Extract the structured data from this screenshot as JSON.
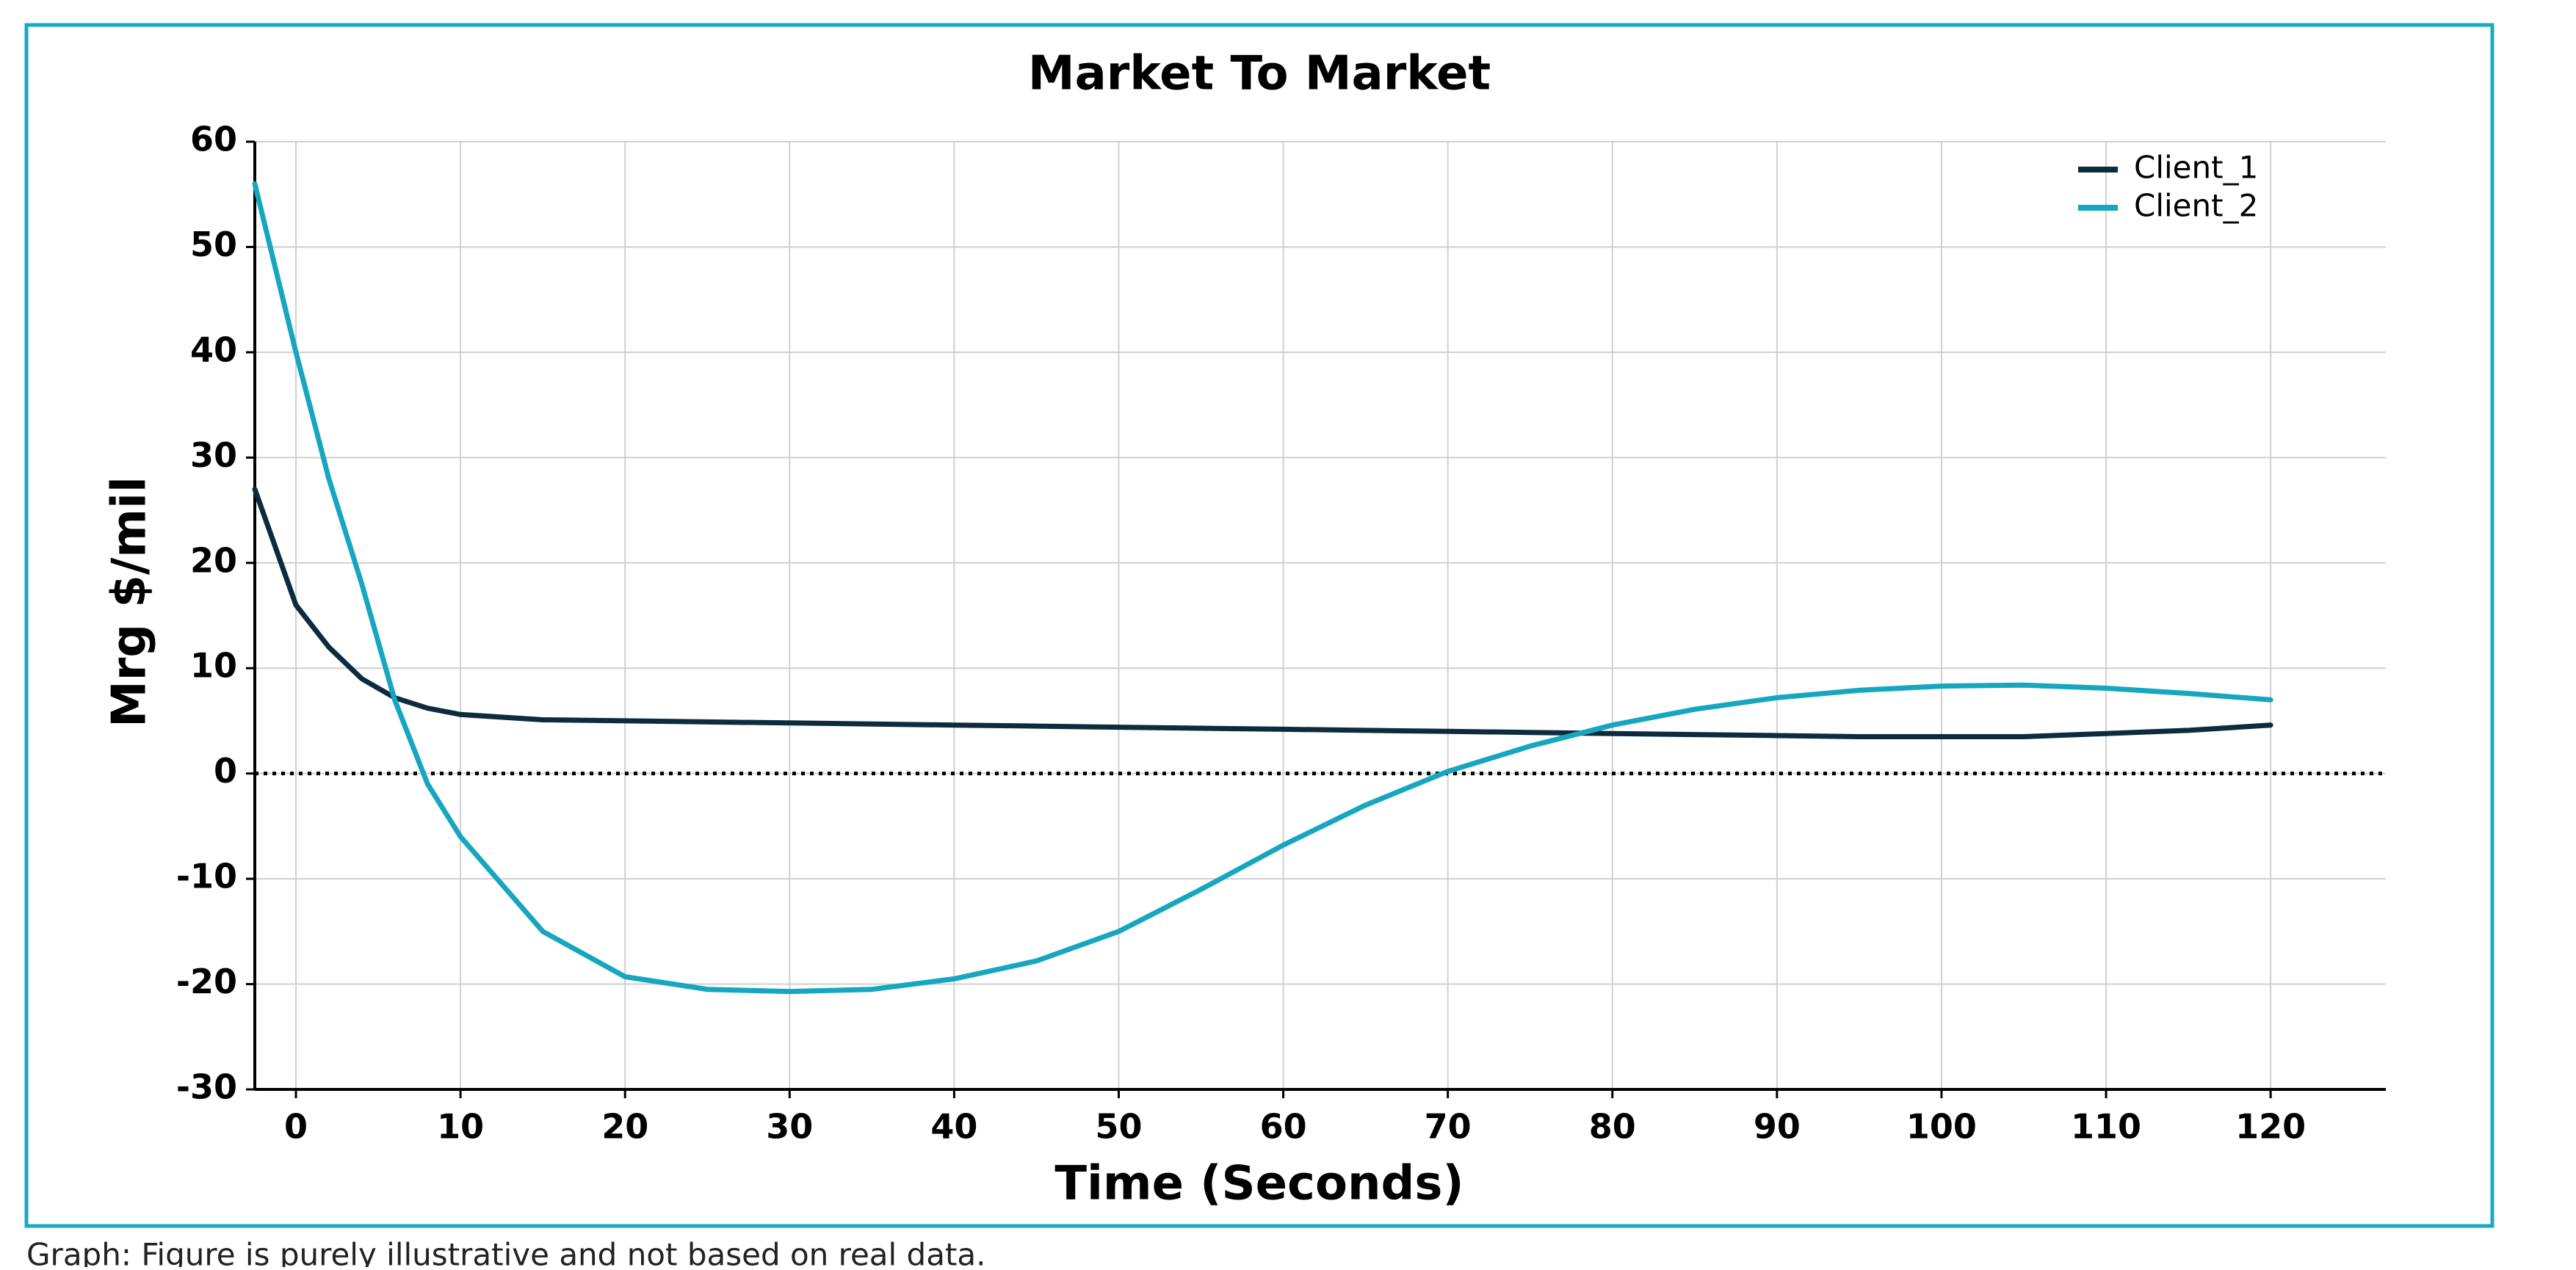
{
  "chart_data": {
    "type": "line",
    "title": "Market To Market",
    "x_label": "Time (Seconds)",
    "y_label": "Mrg $/mil",
    "caption": "Graph: Figure is purely illustrative and not based on real data.",
    "x": [
      -2.5,
      0,
      2,
      4,
      6,
      8,
      10,
      15,
      20,
      25,
      30,
      35,
      40,
      45,
      50,
      55,
      60,
      65,
      70,
      75,
      80,
      85,
      90,
      95,
      100,
      105,
      110,
      115,
      120
    ],
    "series": [
      {
        "name": "Client_1",
        "color": "#0d2b3e",
        "values": [
          27,
          16,
          12,
          9,
          7.2,
          6.2,
          5.6,
          5.1,
          5,
          4.9,
          4.8,
          4.7,
          4.6,
          4.5,
          4.4,
          4.3,
          4.2,
          4.1,
          4,
          3.9,
          3.8,
          3.7,
          3.6,
          3.5,
          3.5,
          3.5,
          3.8,
          4.1,
          4.6
        ]
      },
      {
        "name": "Client_2",
        "color": "#16a6c0",
        "values": [
          56,
          40,
          28,
          18,
          7,
          -1,
          -6,
          -15,
          -19.3,
          -20.5,
          -20.7,
          -20.5,
          -19.5,
          -17.8,
          -15,
          -11,
          -6.8,
          -3,
          0.2,
          2.6,
          4.6,
          6.1,
          7.2,
          7.9,
          8.3,
          8.4,
          8.1,
          7.6,
          7
        ]
      }
    ],
    "xlim": [
      -2.5,
      127
    ],
    "ylim": [
      -30,
      60
    ],
    "xticks": [
      0,
      10,
      20,
      30,
      40,
      50,
      60,
      70,
      80,
      90,
      100,
      110,
      120
    ],
    "yticks": [
      -30,
      -20,
      -10,
      0,
      10,
      20,
      30,
      40,
      50,
      60
    ],
    "grid": true,
    "legend_position": "upper right",
    "zero_line": true
  }
}
